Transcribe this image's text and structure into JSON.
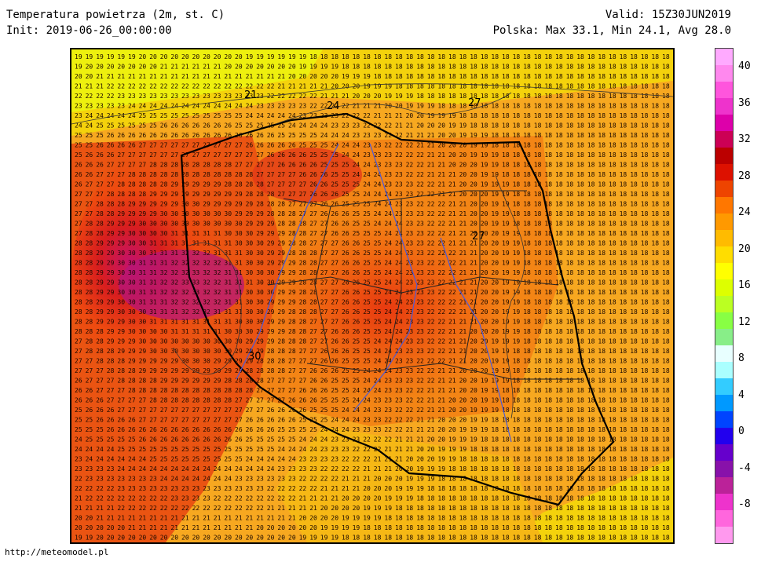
{
  "header": {
    "title": "Temperatura powietrza (2m, st. C)",
    "init": "Init: 2019-06-26_00:00:00",
    "valid": "Valid: 15Z30JUN2019",
    "stats": "Polska: Max 33.1, Min 24.1, Avg 28.0"
  },
  "footer": {
    "url": "http://meteomodel.pl"
  },
  "colorbar": {
    "ticks": [
      "40",
      "36",
      "32",
      "28",
      "24",
      "20",
      "16",
      "12",
      "8",
      "4",
      "0",
      "-4",
      "-8"
    ],
    "colors": [
      "#ff99ee",
      "#ff66dd",
      "#ee33cc",
      "#bb2299",
      "#8811aa",
      "#6600cc",
      "#2200ee",
      "#0044ff",
      "#0099ff",
      "#33ccff",
      "#aaffff",
      "#e8ffff",
      "#88ee88",
      "#88ff44",
      "#bbff22",
      "#ddff00",
      "#ffff00",
      "#ffdd00",
      "#ffbb00",
      "#ff9900",
      "#ff7700",
      "#ee4400",
      "#dd1100",
      "#bb0000",
      "#cc0055",
      "#dd00aa",
      "#ee33cc",
      "#ff55dd",
      "#ff88ee",
      "#ffaaff"
    ]
  },
  "map": {
    "contour_labels": [
      "21",
      "24",
      "27",
      "27",
      "30"
    ]
  }
}
